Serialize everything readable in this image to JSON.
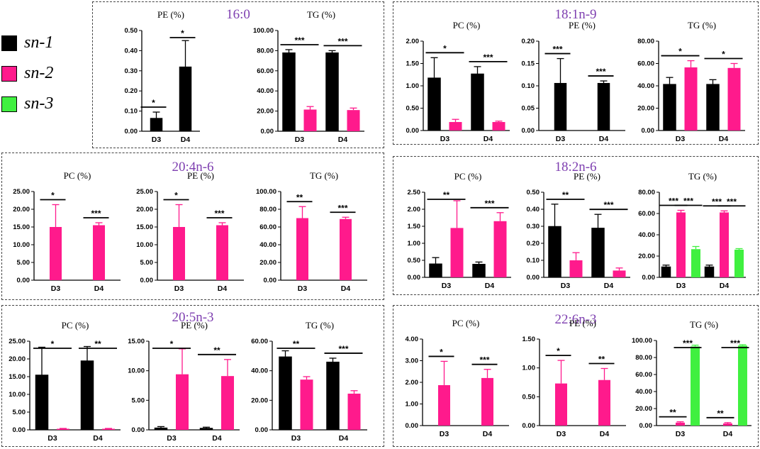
{
  "legend": {
    "items": [
      {
        "label": "sn-1",
        "color": "#000000"
      },
      {
        "label": "sn-2",
        "color": "#ff1a8c"
      },
      {
        "label": "sn-3",
        "color": "#40f040"
      }
    ]
  },
  "panels": [
    {
      "title": "16:0"
    },
    {
      "title": "18:1n-9"
    },
    {
      "title": "20:4n-6"
    },
    {
      "title": "18:2n-6"
    },
    {
      "title": "20:5n-3"
    },
    {
      "title": "22:6n-3"
    }
  ],
  "chart_data": [
    {
      "type": "bar",
      "panel": "16:0",
      "title": "PE (%)",
      "categories": [
        "D3",
        "D4"
      ],
      "ylim": [
        0,
        0.5
      ],
      "yticks": [
        "0.00",
        "0.10",
        "0.20",
        "0.30",
        "0.40",
        "0.50"
      ],
      "series": [
        {
          "name": "sn-1",
          "values": [
            0.065,
            0.32
          ],
          "errors": [
            0.03,
            0.13
          ]
        }
      ],
      "sig": [
        {
          "group": 0,
          "label": "*"
        },
        {
          "group": 1,
          "label": "*"
        }
      ]
    },
    {
      "type": "bar",
      "panel": "16:0",
      "title": "TG (%)",
      "categories": [
        "D3",
        "D4"
      ],
      "ylim": [
        0,
        100
      ],
      "yticks": [
        "0.00",
        "20.00",
        "40.00",
        "60.00",
        "80.00",
        "100.00"
      ],
      "series": [
        {
          "name": "sn-1",
          "values": [
            78,
            78
          ],
          "errors": [
            3,
            2
          ]
        },
        {
          "name": "sn-2",
          "values": [
            21.5,
            21
          ],
          "errors": [
            3,
            2
          ]
        }
      ],
      "sig": [
        {
          "group": 0,
          "label": "***"
        },
        {
          "group": 1,
          "label": "***"
        }
      ]
    },
    {
      "type": "bar",
      "panel": "18:1n-9",
      "title": "PC (%)",
      "categories": [
        "D3",
        "D4"
      ],
      "ylim": [
        0,
        2
      ],
      "yticks": [
        "0.00",
        "0.50",
        "1.00",
        "1.50",
        "2.00"
      ],
      "series": [
        {
          "name": "sn-1",
          "values": [
            1.18,
            1.27
          ],
          "errors": [
            0.45,
            0.16
          ]
        },
        {
          "name": "sn-2",
          "values": [
            0.19,
            0.19
          ],
          "errors": [
            0.06,
            0.02
          ]
        }
      ],
      "sig": [
        {
          "group": 0,
          "label": "*"
        },
        {
          "group": 1,
          "label": "***"
        }
      ]
    },
    {
      "type": "bar",
      "panel": "18:1n-9",
      "title": "PE (%)",
      "categories": [
        "D3",
        "D4"
      ],
      "ylim": [
        0,
        0.2
      ],
      "yticks": [
        "0.00",
        "0.05",
        "0.10",
        "0.15",
        "0.20"
      ],
      "series": [
        {
          "name": "sn-1",
          "values": [
            0.106,
            0.106
          ],
          "errors": [
            0.055,
            0.005
          ]
        }
      ],
      "sig": [
        {
          "group": 0,
          "label": "***"
        },
        {
          "group": 1,
          "label": "***"
        }
      ]
    },
    {
      "type": "bar",
      "panel": "18:1n-9",
      "title": "TG (%)",
      "categories": [
        "D3",
        "D4"
      ],
      "ylim": [
        0,
        80
      ],
      "yticks": [
        "0.00",
        "20.00",
        "40.00",
        "60.00",
        "80.00"
      ],
      "series": [
        {
          "name": "sn-1",
          "values": [
            41.5,
            41.5
          ],
          "errors": [
            6,
            4
          ]
        },
        {
          "name": "sn-2",
          "values": [
            56.5,
            56
          ],
          "errors": [
            6,
            4
          ]
        }
      ],
      "sig": [
        {
          "group": 0,
          "label": "*"
        },
        {
          "group": 1,
          "label": "*"
        }
      ]
    },
    {
      "type": "bar",
      "panel": "20:4n-6",
      "title": "PC (%)",
      "categories": [
        "D3",
        "D4"
      ],
      "ylim": [
        0,
        25
      ],
      "yticks": [
        "0.00",
        "5.00",
        "10.00",
        "15.00",
        "20.00",
        "25.00"
      ],
      "series": [
        {
          "name": "sn-2",
          "values": [
            15,
            15.5
          ],
          "errors": [
            6.3,
            0.7
          ]
        }
      ],
      "sig": [
        {
          "group": 0,
          "label": "*"
        },
        {
          "group": 1,
          "label": "***"
        }
      ]
    },
    {
      "type": "bar",
      "panel": "20:4n-6",
      "title": "PE (%)",
      "categories": [
        "D3",
        "D4"
      ],
      "ylim": [
        0,
        25
      ],
      "yticks": [
        "0.00",
        "5.00",
        "10.00",
        "15.00",
        "20.00",
        "25.00"
      ],
      "series": [
        {
          "name": "sn-2",
          "values": [
            15,
            15.5
          ],
          "errors": [
            6.3,
            0.7
          ]
        }
      ],
      "sig": [
        {
          "group": 0,
          "label": "*"
        },
        {
          "group": 1,
          "label": "***"
        }
      ]
    },
    {
      "type": "bar",
      "panel": "20:4n-6",
      "title": "TG (%)",
      "categories": [
        "D3",
        "D4"
      ],
      "ylim": [
        0,
        100
      ],
      "yticks": [
        "0.00",
        "20.00",
        "40.00",
        "60.00",
        "80.00",
        "100.00"
      ],
      "series": [
        {
          "name": "sn-2",
          "values": [
            70,
            69
          ],
          "errors": [
            13,
            2
          ]
        }
      ],
      "sig": [
        {
          "group": 0,
          "label": "**"
        },
        {
          "group": 1,
          "label": "***"
        }
      ]
    },
    {
      "type": "bar",
      "panel": "18:2n-6",
      "title": "PC (%)",
      "categories": [
        "D3",
        "D4"
      ],
      "ylim": [
        0,
        2.5
      ],
      "yticks": [
        "0.00",
        "0.50",
        "1.00",
        "1.50",
        "2.00",
        "2.50"
      ],
      "series": [
        {
          "name": "sn-1",
          "values": [
            0.4,
            0.39
          ],
          "errors": [
            0.18,
            0.06
          ]
        },
        {
          "name": "sn-2",
          "values": [
            1.45,
            1.65
          ],
          "errors": [
            0.8,
            0.25
          ]
        }
      ],
      "sig": [
        {
          "group": 0,
          "label": "**"
        },
        {
          "group": 1,
          "label": "***"
        }
      ]
    },
    {
      "type": "bar",
      "panel": "18:2n-6",
      "title": "PE (%)",
      "categories": [
        "D3",
        "D4"
      ],
      "ylim": [
        0,
        0.5
      ],
      "yticks": [
        "0.00",
        "0.10",
        "0.20",
        "0.30",
        "0.40",
        "0.50"
      ],
      "series": [
        {
          "name": "sn-1",
          "values": [
            0.3,
            0.29
          ],
          "errors": [
            0.13,
            0.08
          ]
        },
        {
          "name": "sn-2",
          "values": [
            0.1,
            0.04
          ],
          "errors": [
            0.045,
            0.015
          ]
        }
      ],
      "sig": [
        {
          "group": 0,
          "label": "**"
        },
        {
          "group": 1,
          "label": "***"
        }
      ]
    },
    {
      "type": "bar",
      "panel": "18:2n-6",
      "title": "TG (%)",
      "categories": [
        "D3",
        "D4"
      ],
      "ylim": [
        0,
        80
      ],
      "yticks": [
        "0.00",
        "20.00",
        "40.00",
        "60.00",
        "80.00"
      ],
      "series": [
        {
          "name": "sn-1",
          "values": [
            10,
            10
          ],
          "errors": [
            1.5,
            1.5
          ]
        },
        {
          "name": "sn-2",
          "values": [
            61,
            61
          ],
          "errors": [
            2,
            1.5
          ]
        },
        {
          "name": "sn-3",
          "values": [
            26.5,
            26
          ],
          "errors": [
            2.5,
            1
          ]
        }
      ],
      "sig": [
        {
          "group": 0,
          "from": 0,
          "to": 1,
          "label": "***"
        },
        {
          "group": 0,
          "from": 1,
          "to": 2,
          "label": "***"
        },
        {
          "group": 1,
          "from": 0,
          "to": 1,
          "label": "***"
        },
        {
          "group": 1,
          "from": 1,
          "to": 2,
          "label": "***"
        }
      ]
    },
    {
      "type": "bar",
      "panel": "20:5n-3",
      "title": "PC (%)",
      "categories": [
        "D3",
        "D4"
      ],
      "ylim": [
        0,
        25
      ],
      "yticks": [
        "0.00",
        "5.00",
        "10.00",
        "15.00",
        "20.00",
        "25.00"
      ],
      "series": [
        {
          "name": "sn-1",
          "values": [
            15.5,
            19.5
          ],
          "errors": [
            7.8,
            4
          ]
        },
        {
          "name": "sn-2",
          "values": [
            0.3,
            0.3
          ],
          "errors": [
            0.1,
            0.1
          ]
        }
      ],
      "sig": [
        {
          "group": 0,
          "label": "*"
        },
        {
          "group": 1,
          "label": "**"
        }
      ]
    },
    {
      "type": "bar",
      "panel": "20:5n-3",
      "title": "PE (%)",
      "categories": [
        "D3",
        "D4"
      ],
      "ylim": [
        0,
        15
      ],
      "yticks": [
        "0.00",
        "5.00",
        "10.00",
        "15.00"
      ],
      "series": [
        {
          "name": "sn-1",
          "values": [
            0.35,
            0.3
          ],
          "errors": [
            0.2,
            0.15
          ]
        },
        {
          "name": "sn-2",
          "values": [
            9.4,
            9.1
          ],
          "errors": [
            4.3,
            2.8
          ]
        }
      ],
      "sig": [
        {
          "group": 0,
          "label": "*"
        },
        {
          "group": 1,
          "label": "**"
        }
      ]
    },
    {
      "type": "bar",
      "panel": "20:5n-3",
      "title": "TG (%)",
      "categories": [
        "D3",
        "D4"
      ],
      "ylim": [
        0,
        60
      ],
      "yticks": [
        "0.00",
        "20.00",
        "40.00",
        "60.00"
      ],
      "series": [
        {
          "name": "sn-1",
          "values": [
            49.5,
            46
          ],
          "errors": [
            4,
            2.5
          ]
        },
        {
          "name": "sn-2",
          "values": [
            34,
            24.5
          ],
          "errors": [
            2,
            2
          ]
        }
      ],
      "sig": [
        {
          "group": 0,
          "label": "**"
        },
        {
          "group": 1,
          "label": "***"
        }
      ]
    },
    {
      "type": "bar",
      "panel": "22:6n-3",
      "title": "PC (%)",
      "categories": [
        "D3",
        "D4"
      ],
      "ylim": [
        0,
        4
      ],
      "yticks": [
        "0.00",
        "1.00",
        "2.00",
        "3.00",
        "4.00"
      ],
      "series": [
        {
          "name": "sn-2",
          "values": [
            1.87,
            2.2
          ],
          "errors": [
            1.1,
            0.4
          ]
        }
      ],
      "sig": [
        {
          "group": 0,
          "label": "*"
        },
        {
          "group": 1,
          "label": "***"
        }
      ]
    },
    {
      "type": "bar",
      "panel": "22:6n-3",
      "title": "PE (%)",
      "categories": [
        "D3",
        "D4"
      ],
      "ylim": [
        0,
        1.5
      ],
      "yticks": [
        "0.00",
        "0.50",
        "1.00",
        "1.50"
      ],
      "series": [
        {
          "name": "sn-2",
          "values": [
            0.73,
            0.79
          ],
          "errors": [
            0.4,
            0.2
          ]
        }
      ],
      "sig": [
        {
          "group": 0,
          "label": "*"
        },
        {
          "group": 1,
          "label": "**"
        }
      ]
    },
    {
      "type": "bar",
      "panel": "22:6n-3",
      "title": "TG (%)",
      "categories": [
        "D3",
        "D4"
      ],
      "ylim": [
        0,
        100
      ],
      "yticks": [
        "0.00",
        "20.00",
        "40.00",
        "60.00",
        "80.00",
        "100.00"
      ],
      "series": [
        {
          "name": "sn-1",
          "values": [
            0,
            0
          ],
          "errors": [
            0,
            0
          ]
        },
        {
          "name": "sn-2",
          "values": [
            3.5,
            2.5
          ],
          "errors": [
            1,
            1
          ]
        },
        {
          "name": "sn-3",
          "values": [
            93,
            94
          ],
          "errors": [
            1.5,
            1
          ]
        }
      ],
      "sig": [
        {
          "group": 0,
          "from": 0,
          "to": 1,
          "label": "**"
        },
        {
          "group": 0,
          "from": 1,
          "to": 2,
          "label": "***"
        },
        {
          "group": 1,
          "from": 0,
          "to": 1,
          "label": "**"
        },
        {
          "group": 1,
          "from": 1,
          "to": 2,
          "label": "***"
        }
      ]
    }
  ]
}
